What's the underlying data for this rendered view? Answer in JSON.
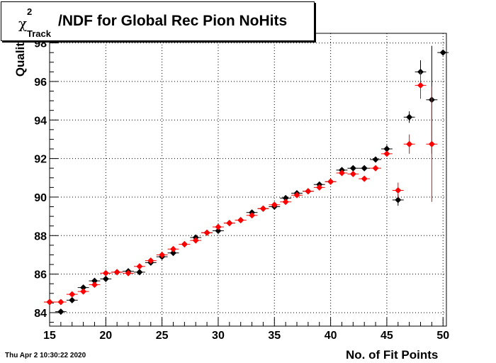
{
  "title": {
    "chi": "χ",
    "sup": "2",
    "sub": "Track",
    "main": "/NDF for Global Rec Pion NoHits"
  },
  "ylabel": "Qualit",
  "xlabel": "No. of Fit Points",
  "datestamp": "Thu Apr  2 10:30:22 2020",
  "colors": {
    "series_black": "#000000",
    "series_red": "#ff0000",
    "grid": "#000000"
  },
  "chart_data": {
    "type": "scatter",
    "xlabel": "No. of Fit Points",
    "ylabel": "Qualit",
    "xlim": [
      15,
      50.3
    ],
    "ylim": [
      83.3,
      98.5
    ],
    "xticks": [
      15,
      20,
      25,
      30,
      35,
      40,
      45,
      50
    ],
    "yticks": [
      84,
      86,
      88,
      90,
      92,
      94,
      96,
      98
    ],
    "grid": true,
    "series": [
      {
        "color": "#000000",
        "points": [
          {
            "x": 15,
            "y": 84.55
          },
          {
            "x": 16,
            "y": 84.05
          },
          {
            "x": 17,
            "y": 84.65
          },
          {
            "x": 18,
            "y": 85.3
          },
          {
            "x": 19,
            "y": 85.65
          },
          {
            "x": 20,
            "y": 85.75
          },
          {
            "x": 21,
            "y": 86.1
          },
          {
            "x": 22,
            "y": 86.15
          },
          {
            "x": 23,
            "y": 86.1
          },
          {
            "x": 24,
            "y": 86.6
          },
          {
            "x": 25,
            "y": 86.9
          },
          {
            "x": 26,
            "y": 87.1
          },
          {
            "x": 27,
            "y": 87.55
          },
          {
            "x": 28,
            "y": 87.9
          },
          {
            "x": 29,
            "y": 88.15
          },
          {
            "x": 30,
            "y": 88.25
          },
          {
            "x": 31,
            "y": 88.65
          },
          {
            "x": 32,
            "y": 88.8
          },
          {
            "x": 33,
            "y": 89.2
          },
          {
            "x": 34,
            "y": 89.4
          },
          {
            "x": 35,
            "y": 89.5
          },
          {
            "x": 36,
            "y": 89.95
          },
          {
            "x": 37,
            "y": 90.2
          },
          {
            "x": 38,
            "y": 90.3
          },
          {
            "x": 39,
            "y": 90.65
          },
          {
            "x": 40,
            "y": 90.8
          },
          {
            "x": 41,
            "y": 91.4
          },
          {
            "x": 42,
            "y": 91.5
          },
          {
            "x": 43,
            "y": 91.5
          },
          {
            "x": 44,
            "y": 91.95
          },
          {
            "x": 45,
            "y": 92.5,
            "err": 0.2
          },
          {
            "x": 46,
            "y": 89.85,
            "err": 0.3
          },
          {
            "x": 47,
            "y": 94.15,
            "err": 0.3
          },
          {
            "x": 48,
            "y": 96.5,
            "err": 0.6
          },
          {
            "x": 49,
            "y": 95.05,
            "err": 2.8
          },
          {
            "x": 50,
            "y": 97.5,
            "err": 0
          }
        ]
      },
      {
        "color": "#ff0000",
        "points": [
          {
            "x": 15,
            "y": 84.55
          },
          {
            "x": 16,
            "y": 84.55
          },
          {
            "x": 17,
            "y": 84.95
          },
          {
            "x": 18,
            "y": 85.1
          },
          {
            "x": 19,
            "y": 85.45
          },
          {
            "x": 20,
            "y": 86.05
          },
          {
            "x": 21,
            "y": 86.1
          },
          {
            "x": 22,
            "y": 86.05
          },
          {
            "x": 23,
            "y": 86.4
          },
          {
            "x": 24,
            "y": 86.7
          },
          {
            "x": 25,
            "y": 87.0
          },
          {
            "x": 26,
            "y": 87.3
          },
          {
            "x": 27,
            "y": 87.55
          },
          {
            "x": 28,
            "y": 87.75
          },
          {
            "x": 29,
            "y": 88.15
          },
          {
            "x": 30,
            "y": 88.45
          },
          {
            "x": 31,
            "y": 88.65
          },
          {
            "x": 32,
            "y": 88.8
          },
          {
            "x": 33,
            "y": 89.05
          },
          {
            "x": 34,
            "y": 89.4
          },
          {
            "x": 35,
            "y": 89.6
          },
          {
            "x": 36,
            "y": 89.75
          },
          {
            "x": 37,
            "y": 90.1
          },
          {
            "x": 38,
            "y": 90.3
          },
          {
            "x": 39,
            "y": 90.5
          },
          {
            "x": 40,
            "y": 90.8
          },
          {
            "x": 41,
            "y": 91.25
          },
          {
            "x": 42,
            "y": 91.2
          },
          {
            "x": 43,
            "y": 90.95
          },
          {
            "x": 44,
            "y": 91.5
          },
          {
            "x": 45,
            "y": 92.25,
            "err": 0.15
          },
          {
            "x": 46,
            "y": 90.35,
            "err": 0.4
          },
          {
            "x": 47,
            "y": 92.75,
            "err": 0.5
          },
          {
            "x": 48,
            "y": 95.8,
            "err": 0.7
          },
          {
            "x": 49,
            "y": 92.75,
            "err": 3.0
          }
        ]
      }
    ]
  }
}
